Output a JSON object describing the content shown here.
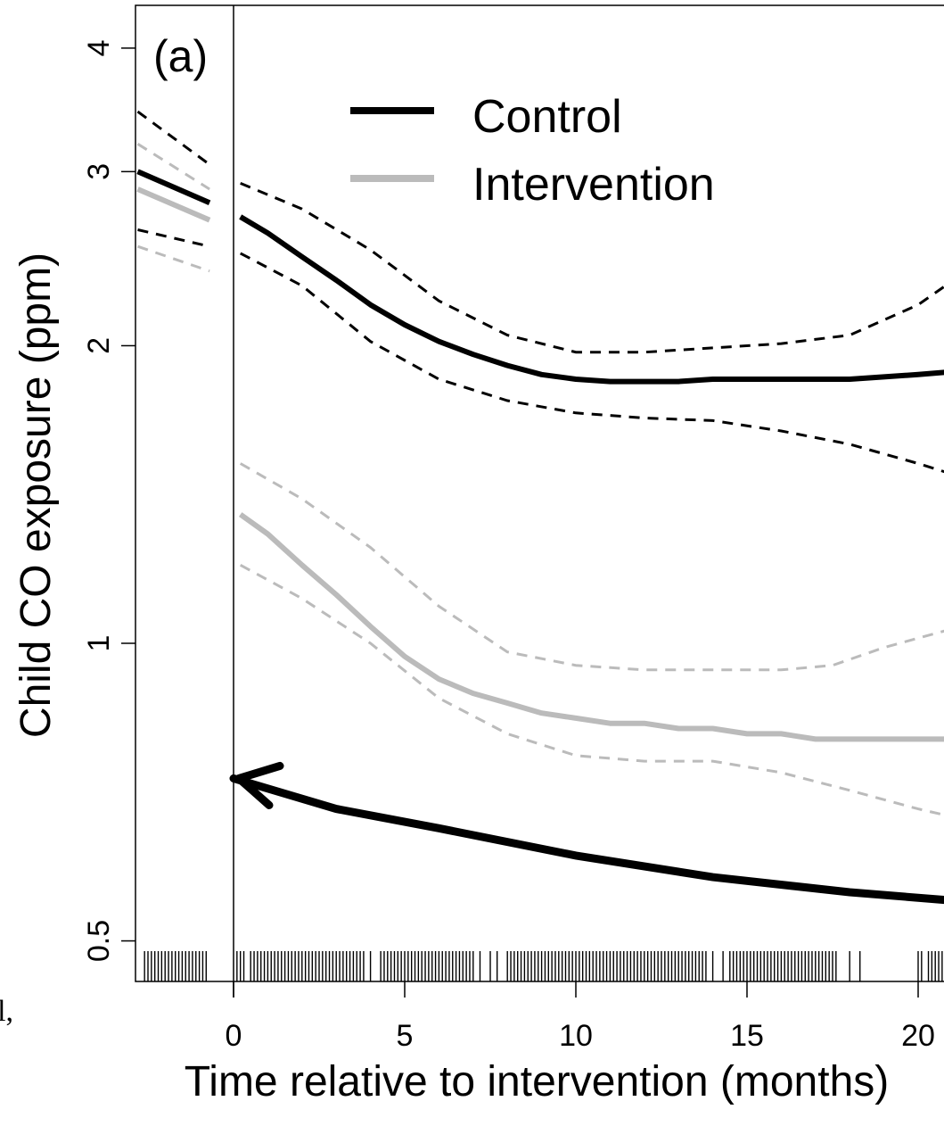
{
  "chart_data": {
    "type": "line",
    "panel_label": "(a)",
    "xlabel": "Time relative to intervention (months)",
    "ylabel": "Child CO exposure (ppm)",
    "x_scale": "linear",
    "y_scale": "log",
    "xlim": [
      -2.8,
      20.8
    ],
    "ylim": [
      0.47,
      4.3
    ],
    "x_ticks": [
      0,
      5,
      10,
      15,
      20
    ],
    "y_ticks": [
      0.5,
      1,
      2,
      3,
      4
    ],
    "x_tick_labels": [
      "0",
      "5",
      "10",
      "15",
      "20"
    ],
    "y_tick_labels": [
      "0.5",
      "1",
      "2",
      "3",
      "4"
    ],
    "vertical_reference_x": 0,
    "legend": {
      "placement": "top-center",
      "entries": [
        "Control",
        "Intervention"
      ]
    },
    "colors": {
      "control": "#000000",
      "intervention": "#bbbbbb"
    },
    "side_text": "al,",
    "series": [
      {
        "name": "Control",
        "pre": {
          "x": [
            -2.8,
            -0.7
          ],
          "y": [
            3.0,
            2.79
          ]
        },
        "pre_ci_upper": {
          "x": [
            -2.8,
            -0.7
          ],
          "y": [
            3.45,
            3.05
          ]
        },
        "pre_ci_lower": {
          "x": [
            -2.8,
            -0.7
          ],
          "y": [
            2.62,
            2.52
          ]
        },
        "post": {
          "x": [
            0.2,
            1,
            2,
            3,
            4,
            5,
            6,
            7,
            8,
            9,
            10,
            11,
            12,
            13,
            14,
            15,
            16,
            17,
            18,
            19,
            20,
            20.8
          ],
          "y": [
            2.7,
            2.6,
            2.46,
            2.33,
            2.2,
            2.1,
            2.02,
            1.96,
            1.91,
            1.87,
            1.85,
            1.84,
            1.84,
            1.84,
            1.85,
            1.85,
            1.85,
            1.85,
            1.85,
            1.86,
            1.87,
            1.88
          ]
        },
        "ci_upper": {
          "x": [
            0.2,
            2,
            4,
            6,
            8,
            10,
            12,
            14,
            16,
            18,
            20,
            20.8
          ],
          "y": [
            2.92,
            2.75,
            2.5,
            2.22,
            2.05,
            1.97,
            1.97,
            1.99,
            2.01,
            2.05,
            2.2,
            2.3
          ]
        },
        "ci_lower": {
          "x": [
            0.2,
            2,
            4,
            6,
            8,
            10,
            12,
            14,
            16,
            18,
            20,
            20.8
          ],
          "y": [
            2.48,
            2.3,
            2.02,
            1.85,
            1.76,
            1.71,
            1.69,
            1.68,
            1.64,
            1.59,
            1.52,
            1.49
          ]
        }
      },
      {
        "name": "Intervention",
        "pre": {
          "x": [
            -2.8,
            -0.7
          ],
          "y": [
            2.88,
            2.68
          ]
        },
        "pre_ci_upper": {
          "x": [
            -2.8,
            -0.7
          ],
          "y": [
            3.2,
            2.88
          ]
        },
        "pre_ci_lower": {
          "x": [
            -2.8,
            -0.7
          ],
          "y": [
            2.52,
            2.38
          ]
        },
        "post": {
          "x": [
            0.2,
            1,
            2,
            3,
            4,
            5,
            6,
            7,
            8,
            9,
            10,
            11,
            12,
            13,
            14,
            15,
            16,
            17,
            18,
            19,
            20,
            20.8
          ],
          "y": [
            1.35,
            1.29,
            1.2,
            1.12,
            1.04,
            0.97,
            0.92,
            0.89,
            0.87,
            0.85,
            0.84,
            0.83,
            0.83,
            0.82,
            0.82,
            0.81,
            0.81,
            0.8,
            0.8,
            0.8,
            0.8,
            0.8
          ]
        },
        "ci_upper": {
          "x": [
            0.2,
            2,
            4,
            6,
            8,
            10,
            12,
            14,
            16,
            17.5,
            19,
            20.8
          ],
          "y": [
            1.52,
            1.4,
            1.25,
            1.09,
            0.98,
            0.95,
            0.94,
            0.94,
            0.94,
            0.95,
            0.99,
            1.03
          ]
        },
        "ci_lower": {
          "x": [
            0.2,
            2,
            4,
            6,
            8,
            10,
            12,
            14,
            16,
            18,
            20,
            20.8
          ],
          "y": [
            1.2,
            1.11,
            1.0,
            0.88,
            0.81,
            0.77,
            0.76,
            0.76,
            0.74,
            0.71,
            0.68,
            0.67
          ]
        }
      }
    ],
    "annotation_arrow": {
      "x": [
        20.8,
        18,
        14,
        10,
        6,
        3,
        0
      ],
      "y": [
        0.55,
        0.56,
        0.58,
        0.61,
        0.65,
        0.68,
        0.73
      ]
    },
    "rug_x": [
      -2.6,
      -2.5,
      -2.4,
      -2.3,
      -2.2,
      -2.1,
      -2.0,
      -1.9,
      -1.8,
      -1.7,
      -1.6,
      -1.5,
      -1.4,
      -1.3,
      -1.2,
      -1.1,
      -1.0,
      -0.9,
      -0.8,
      0.1,
      0.2,
      0.3,
      0.5,
      0.6,
      0.7,
      0.8,
      0.9,
      1.0,
      1.1,
      1.2,
      1.3,
      1.4,
      1.5,
      1.6,
      1.7,
      1.8,
      1.9,
      2.0,
      2.1,
      2.2,
      2.3,
      2.4,
      2.5,
      2.6,
      2.7,
      2.8,
      2.9,
      3.0,
      3.1,
      3.2,
      3.3,
      3.4,
      3.5,
      3.6,
      3.7,
      3.8,
      4.0,
      4.3,
      4.4,
      4.5,
      4.6,
      4.7,
      4.8,
      4.9,
      5.0,
      5.1,
      5.2,
      5.3,
      5.4,
      5.5,
      5.6,
      5.7,
      5.8,
      5.9,
      6.0,
      6.1,
      6.2,
      6.3,
      6.4,
      6.5,
      6.6,
      6.7,
      6.8,
      6.9,
      7.0,
      7.2,
      7.5,
      7.7,
      8.0,
      8.1,
      8.2,
      8.3,
      8.4,
      8.5,
      8.6,
      8.7,
      8.8,
      8.9,
      9.0,
      9.1,
      9.2,
      9.3,
      9.4,
      9.5,
      9.6,
      9.7,
      9.8,
      9.9,
      10.0,
      10.1,
      10.2,
      10.3,
      10.4,
      10.5,
      10.6,
      10.7,
      10.8,
      10.9,
      11.0,
      11.1,
      11.2,
      11.3,
      11.4,
      11.5,
      11.6,
      11.7,
      11.8,
      11.9,
      12.0,
      12.1,
      12.2,
      12.3,
      12.4,
      12.5,
      12.6,
      12.7,
      12.8,
      12.9,
      13.0,
      13.1,
      13.2,
      13.3,
      13.4,
      13.5,
      13.6,
      13.7,
      13.8,
      14.0,
      14.3,
      14.5,
      14.6,
      14.7,
      14.8,
      14.9,
      15.0,
      15.1,
      15.2,
      15.3,
      15.4,
      15.5,
      15.6,
      15.7,
      15.8,
      15.9,
      16.0,
      16.1,
      16.2,
      16.3,
      16.4,
      16.5,
      16.6,
      16.7,
      16.8,
      16.9,
      17.0,
      17.1,
      17.2,
      17.3,
      17.4,
      17.5,
      17.6,
      18.0,
      18.3,
      20.0,
      20.1,
      20.3,
      20.4,
      20.5,
      20.6,
      20.7
    ]
  }
}
